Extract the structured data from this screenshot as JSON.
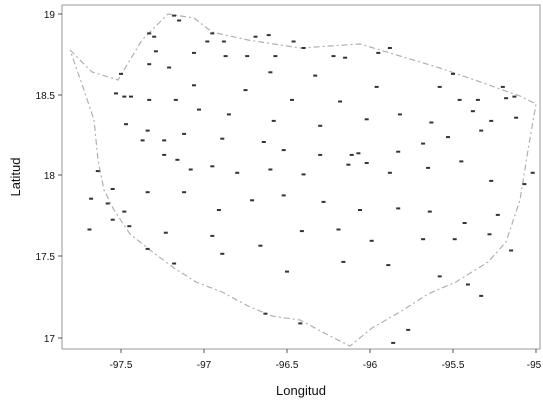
{
  "chart_data": {
    "type": "scatter",
    "title": "",
    "xlabel": "Longitud",
    "ylabel": "Latitud",
    "xlim": [
      -97.85,
      -94.98
    ],
    "ylim": [
      16.9,
      19.03
    ],
    "xticks": [
      -97.5,
      -97,
      -96.5,
      -96,
      -95.5,
      -95
    ],
    "xtick_labels": [
      "-97.5",
      "-97",
      "-96.5",
      "-96",
      "-95.5",
      "-95"
    ],
    "yticks": [
      17,
      17.5,
      18,
      18.5,
      19
    ],
    "ytick_labels": [
      "17",
      "17.5",
      "18",
      "18.5",
      "19"
    ],
    "grid": false,
    "legend": false,
    "colors": {
      "points": "#333333",
      "outline": "#b0b0b0",
      "frame": "#999999"
    },
    "points": [
      [
        -97.18,
        18.99
      ],
      [
        -97.15,
        18.96
      ],
      [
        -97.33,
        18.88
      ],
      [
        -97.3,
        18.86
      ],
      [
        -96.95,
        18.88
      ],
      [
        -96.98,
        18.83
      ],
      [
        -96.88,
        18.83
      ],
      [
        -96.69,
        18.86
      ],
      [
        -96.61,
        18.87
      ],
      [
        -96.46,
        18.83
      ],
      [
        -96.4,
        18.79
      ],
      [
        -96.22,
        18.74
      ],
      [
        -96.15,
        18.73
      ],
      [
        -95.95,
        18.76
      ],
      [
        -95.88,
        18.79
      ],
      [
        -95.5,
        18.63
      ],
      [
        -95.58,
        18.55
      ],
      [
        -95.2,
        18.55
      ],
      [
        -95.46,
        18.47
      ],
      [
        -95.35,
        18.47
      ],
      [
        -95.18,
        18.48
      ],
      [
        -95.13,
        18.49
      ],
      [
        -97.5,
        18.63
      ],
      [
        -97.53,
        18.51
      ],
      [
        -97.48,
        18.49
      ],
      [
        -97.44,
        18.49
      ],
      [
        -97.33,
        18.47
      ],
      [
        -97.33,
        18.69
      ],
      [
        -97.21,
        18.67
      ],
      [
        -97.29,
        18.77
      ],
      [
        -97.06,
        18.76
      ],
      [
        -96.87,
        18.74
      ],
      [
        -96.74,
        18.74
      ],
      [
        -96.57,
        18.74
      ],
      [
        -96.6,
        18.64
      ],
      [
        -96.33,
        18.62
      ],
      [
        -95.96,
        18.55
      ],
      [
        -96.18,
        18.46
      ],
      [
        -96.47,
        18.47
      ],
      [
        -96.75,
        18.53
      ],
      [
        -97.06,
        18.56
      ],
      [
        -97.17,
        18.47
      ],
      [
        -97.03,
        18.41
      ],
      [
        -96.85,
        18.38
      ],
      [
        -96.58,
        18.34
      ],
      [
        -96.3,
        18.31
      ],
      [
        -96.02,
        18.35
      ],
      [
        -95.82,
        18.38
      ],
      [
        -95.63,
        18.33
      ],
      [
        -95.38,
        18.4
      ],
      [
        -95.27,
        18.34
      ],
      [
        -95.12,
        18.36
      ],
      [
        -95.33,
        18.28
      ],
      [
        -95.53,
        18.24
      ],
      [
        -95.68,
        18.2
      ],
      [
        -95.83,
        18.15
      ],
      [
        -96.07,
        18.14
      ],
      [
        -96.11,
        18.13
      ],
      [
        -96.3,
        18.13
      ],
      [
        -96.52,
        18.16
      ],
      [
        -96.64,
        18.21
      ],
      [
        -96.89,
        18.23
      ],
      [
        -97.12,
        18.26
      ],
      [
        -97.24,
        18.22
      ],
      [
        -97.37,
        18.22
      ],
      [
        -97.34,
        18.28
      ],
      [
        -97.47,
        18.32
      ],
      [
        -97.24,
        18.13
      ],
      [
        -97.16,
        18.1
      ],
      [
        -97.08,
        18.04
      ],
      [
        -96.95,
        18.06
      ],
      [
        -96.8,
        18.02
      ],
      [
        -96.6,
        18.04
      ],
      [
        -96.4,
        18.01
      ],
      [
        -96.13,
        18.07
      ],
      [
        -96.02,
        18.08
      ],
      [
        -95.88,
        18.02
      ],
      [
        -95.65,
        18.05
      ],
      [
        -95.45,
        18.09
      ],
      [
        -95.27,
        17.97
      ],
      [
        -95.07,
        17.95
      ],
      [
        -95.02,
        18.02
      ],
      [
        -97.64,
        18.03
      ],
      [
        -97.55,
        17.92
      ],
      [
        -97.58,
        17.83
      ],
      [
        -97.48,
        17.78
      ],
      [
        -97.34,
        17.9
      ],
      [
        -97.12,
        17.9
      ],
      [
        -96.91,
        17.79
      ],
      [
        -96.71,
        17.85
      ],
      [
        -96.52,
        17.88
      ],
      [
        -96.28,
        17.84
      ],
      [
        -96.06,
        17.79
      ],
      [
        -95.83,
        17.8
      ],
      [
        -95.64,
        17.78
      ],
      [
        -95.43,
        17.71
      ],
      [
        -95.23,
        17.76
      ],
      [
        -97.68,
        17.86
      ],
      [
        -97.69,
        17.67
      ],
      [
        -97.55,
        17.73
      ],
      [
        -97.45,
        17.69
      ],
      [
        -97.23,
        17.65
      ],
      [
        -96.95,
        17.63
      ],
      [
        -96.66,
        17.57
      ],
      [
        -96.41,
        17.66
      ],
      [
        -96.19,
        17.67
      ],
      [
        -95.99,
        17.6
      ],
      [
        -95.68,
        17.61
      ],
      [
        -95.49,
        17.61
      ],
      [
        -95.28,
        17.64
      ],
      [
        -95.15,
        17.54
      ],
      [
        -97.34,
        17.55
      ],
      [
        -97.18,
        17.46
      ],
      [
        -96.89,
        17.52
      ],
      [
        -96.5,
        17.41
      ],
      [
        -96.16,
        17.47
      ],
      [
        -95.89,
        17.45
      ],
      [
        -95.58,
        17.38
      ],
      [
        -95.41,
        17.33
      ],
      [
        -95.33,
        17.26
      ],
      [
        -96.63,
        17.15
      ],
      [
        -96.42,
        17.09
      ],
      [
        -95.86,
        16.97
      ],
      [
        -95.77,
        17.05
      ]
    ]
  }
}
